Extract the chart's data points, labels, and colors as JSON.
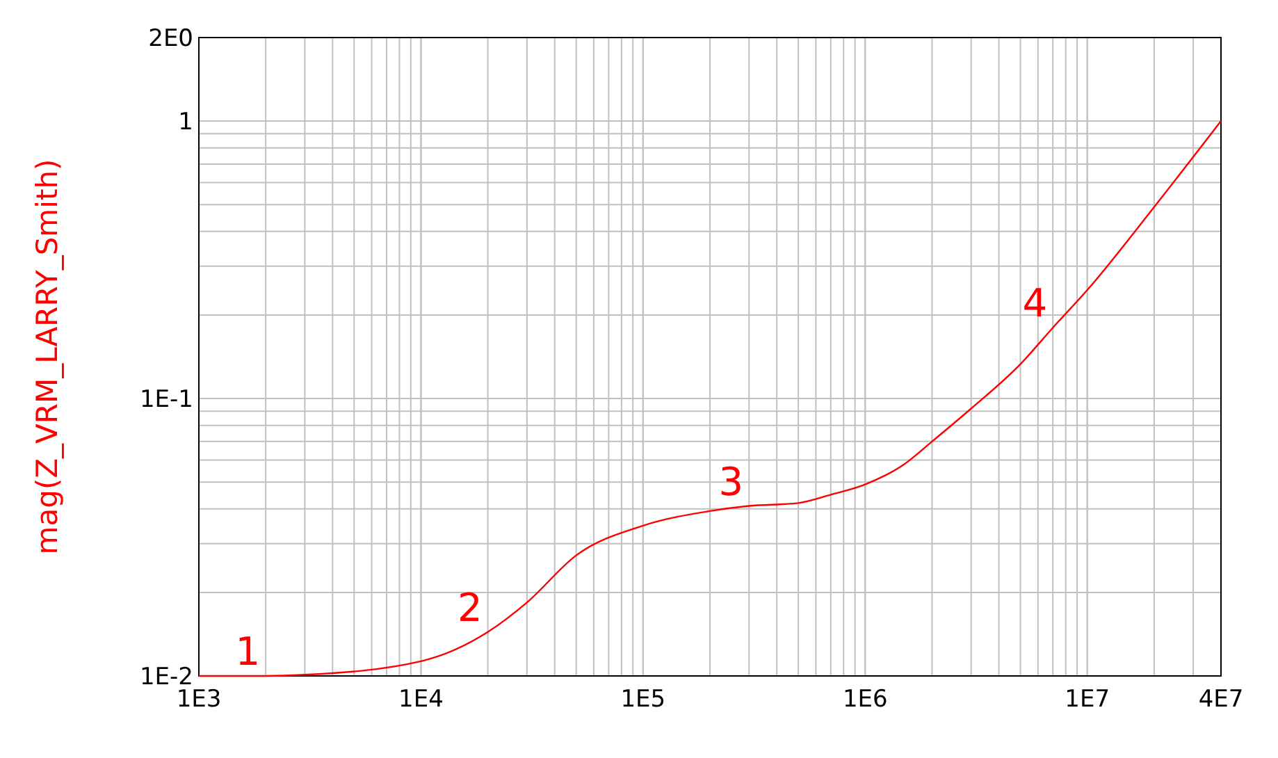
{
  "chart_data": {
    "type": "line",
    "ylabel": "mag(Z_VRM_LARRY_Smith)",
    "log": "xy",
    "grid": true,
    "marker": "none",
    "line_style": "solid",
    "x": [
      1000,
      2000,
      3000,
      10000,
      20000,
      30000,
      50000,
      100000,
      200000,
      300000,
      500000,
      700000,
      1000000,
      1500000,
      2000000,
      3000000,
      5000000,
      7000000,
      10000000,
      20000000,
      40000000
    ],
    "series": [
      {
        "color": "#ff0000",
        "values": [
          0.01,
          0.01,
          0.0101,
          0.0113,
          0.0144,
          0.0184,
          0.0272,
          0.0348,
          0.0393,
          0.041,
          0.042,
          0.045,
          0.049,
          0.058,
          0.07,
          0.092,
          0.133,
          0.18,
          0.246,
          0.49,
          1.0
        ]
      }
    ],
    "xlim": [
      1000,
      40000000
    ],
    "xticks": [
      {
        "value": 1000,
        "label": "1E3"
      },
      {
        "value": 10000,
        "label": "1E4"
      },
      {
        "value": 100000,
        "label": "1E5"
      },
      {
        "value": 1000000,
        "label": "1E6"
      },
      {
        "value": 10000000,
        "label": "1E7"
      },
      {
        "value": 40000000,
        "label": "4E7"
      }
    ],
    "ylim": [
      0.01,
      2
    ],
    "yticks": [
      {
        "value": 0.01,
        "label": "1E-2"
      },
      {
        "value": 0.1,
        "label": "1E-1"
      },
      1,
      {
        "value": 2,
        "label": "2E0"
      }
    ],
    "annotations": [
      {
        "text": "1",
        "x": 2000,
        "y": 0.01
      },
      {
        "text": "2",
        "x": 20000,
        "y": 0.0144
      },
      {
        "text": "3",
        "x": 300000,
        "y": 0.041
      },
      {
        "text": "4",
        "x": 7000000,
        "y": 0.18
      }
    ]
  }
}
